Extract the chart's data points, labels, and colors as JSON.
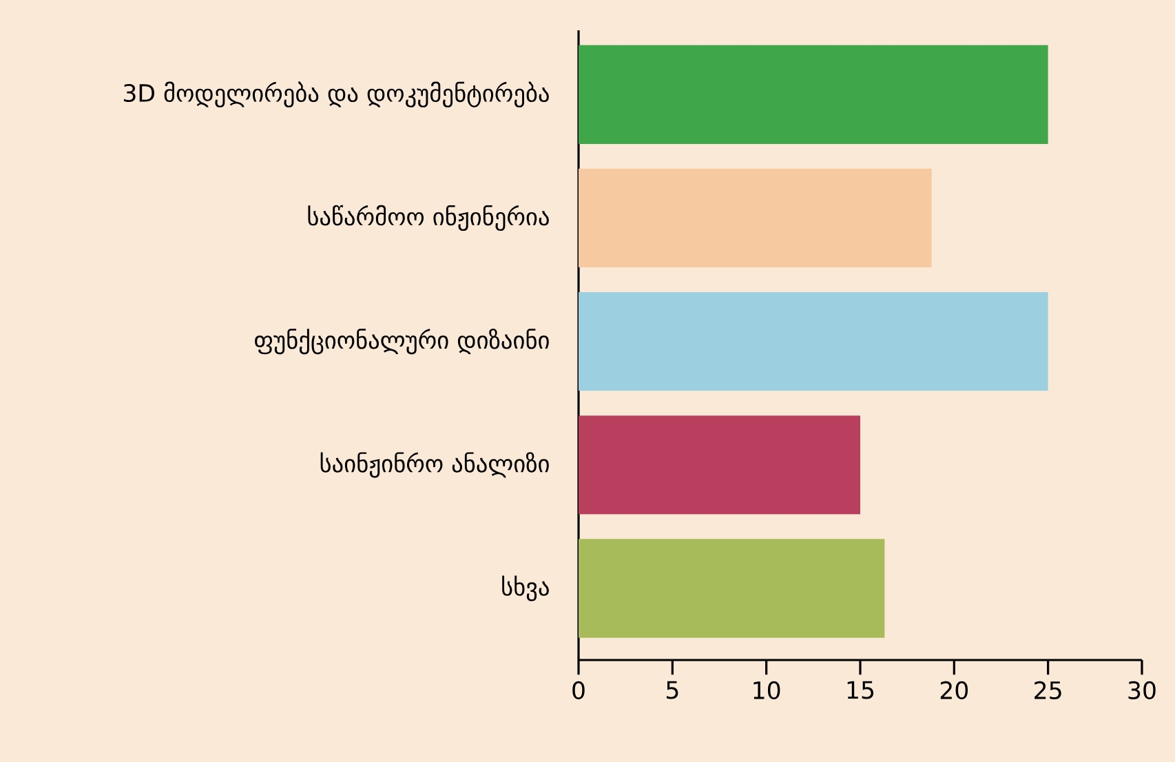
{
  "chart_data": {
    "type": "bar",
    "orientation": "horizontal",
    "categories": [
      "3D მოდელირება და დოკუმენტირება",
      "საწარმოო ინჟინერია",
      "ფუნქციონალური დიზაინი",
      "საინჟინრო ანალიზი",
      "სხვა"
    ],
    "values": [
      25,
      18.8,
      25,
      15,
      16.3
    ],
    "colors": [
      "#3fa64a",
      "#f7c9a0",
      "#9ccfe0",
      "#b8405e",
      "#a8bb5a"
    ],
    "xlim": [
      0,
      30
    ],
    "xticks": [
      0,
      5,
      10,
      15,
      20,
      25,
      30
    ]
  }
}
